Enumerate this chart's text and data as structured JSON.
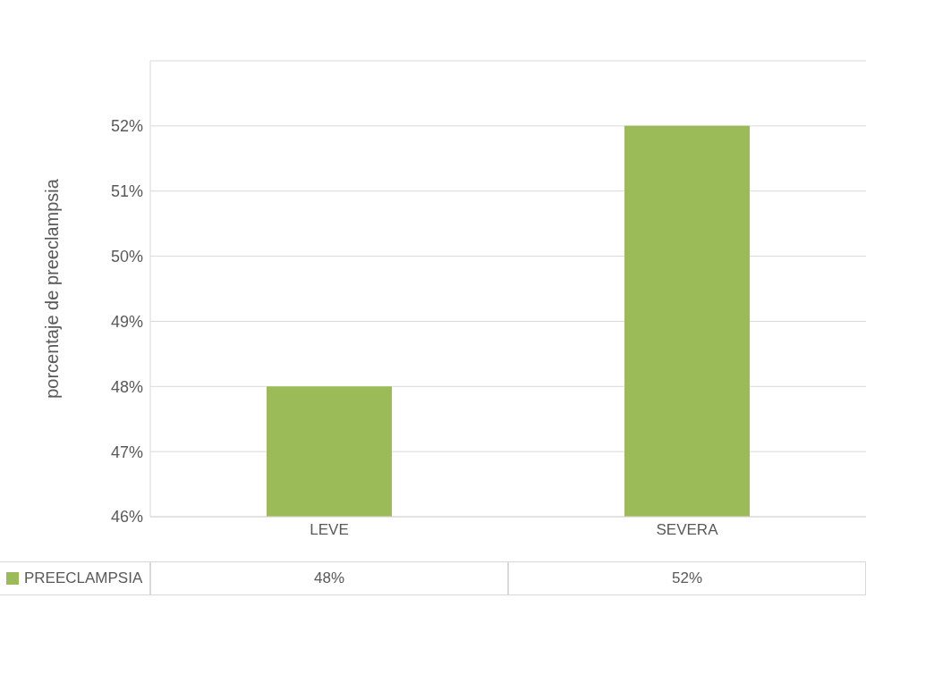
{
  "chart_data": {
    "type": "bar",
    "ylabel": "porcentaje de preeclampsia",
    "categories": [
      "LEVE",
      "SEVERA"
    ],
    "series": [
      {
        "name": "PREECLAMPSIA",
        "color": "#9bbb59",
        "values": [
          48,
          52
        ],
        "value_labels": [
          "48%",
          "52%"
        ]
      }
    ],
    "ylim": [
      46,
      53
    ],
    "yticks": [
      {
        "value": 46,
        "label": "46%"
      },
      {
        "value": 47,
        "label": "47%"
      },
      {
        "value": 48,
        "label": "48%"
      },
      {
        "value": 49,
        "label": "49%"
      },
      {
        "value": 50,
        "label": "50%"
      },
      {
        "value": 51,
        "label": "51%"
      },
      {
        "value": 52,
        "label": "52%"
      },
      {
        "value": 53,
        "label": null
      }
    ],
    "grid": "y",
    "legend": "bottom"
  }
}
